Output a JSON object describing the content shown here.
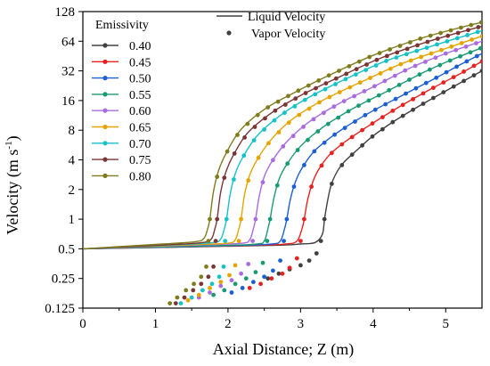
{
  "chart_data": {
    "type": "scatter",
    "title": "",
    "xlabel": "Axial Distance; Z (m)",
    "ylabel": "Velocity (m s⁻¹)",
    "ylabel_main": "Velocity (m s",
    "ylabel_sup": "-1",
    "ylabel_close": ")",
    "xlim": [
      0,
      5.5
    ],
    "ylim": [
      0.125,
      128
    ],
    "yscale": "log2",
    "x_ticks": [
      0,
      1,
      2,
      3,
      4,
      5
    ],
    "x_tick_labels": [
      "0",
      "1",
      "2",
      "3",
      "4",
      "5"
    ],
    "y_ticks": [
      0.125,
      0.25,
      0.5,
      1,
      2,
      4,
      8,
      16,
      32,
      64,
      128
    ],
    "y_tick_labels": [
      "0.125",
      "0.25",
      "0.5",
      "1",
      "2",
      "4",
      "8",
      "16",
      "32",
      "64",
      "128"
    ],
    "legend": {
      "title": "Emissivity",
      "placement": "top-left",
      "line_entry": "Liquid Velocity",
      "dot_entry": "Vapor Velocity"
    },
    "grid": false,
    "series": [
      {
        "name": "0.40",
        "color": "#404040",
        "x_trans": 3.33,
        "x_end": 5.5,
        "y_end": 32,
        "liquid": [
          [
            0,
            0.5
          ],
          [
            2.5,
            0.54
          ],
          [
            3.0,
            0.56
          ],
          [
            3.2,
            0.58
          ],
          [
            3.3,
            0.7
          ],
          [
            3.33,
            1.0
          ],
          [
            3.37,
            1.5
          ],
          [
            3.42,
            2.2
          ],
          [
            3.5,
            3.0
          ],
          [
            3.6,
            3.8
          ],
          [
            3.8,
            5.2
          ],
          [
            4.0,
            7.0
          ],
          [
            4.3,
            10
          ],
          [
            4.7,
            15
          ],
          [
            5.1,
            22
          ],
          [
            5.5,
            32
          ]
        ],
        "vapor": [
          [
            2.55,
            0.25
          ],
          [
            2.7,
            0.28
          ],
          [
            2.85,
            0.31
          ],
          [
            3.0,
            0.34
          ],
          [
            3.12,
            0.38
          ],
          [
            3.22,
            0.45
          ],
          [
            3.28,
            0.6
          ],
          [
            3.33,
            1.0
          ],
          [
            3.42,
            2.2
          ],
          [
            3.6,
            3.8
          ],
          [
            3.8,
            5.2
          ],
          [
            4.0,
            7.0
          ],
          [
            4.3,
            10
          ],
          [
            4.7,
            15
          ],
          [
            5.1,
            22
          ],
          [
            5.5,
            32
          ]
        ]
      },
      {
        "name": "0.45",
        "color": "#e8211f",
        "x_trans": 3.05,
        "x_end": 5.5,
        "y_end": 40,
        "liquid": [
          [
            0,
            0.5
          ],
          [
            2.3,
            0.54
          ],
          [
            2.8,
            0.56
          ],
          [
            2.95,
            0.6
          ],
          [
            3.02,
            0.8
          ],
          [
            3.05,
            1.0
          ],
          [
            3.1,
            1.6
          ],
          [
            3.17,
            2.4
          ],
          [
            3.25,
            3.2
          ],
          [
            3.4,
            4.5
          ],
          [
            3.6,
            6
          ],
          [
            3.9,
            8.5
          ],
          [
            4.3,
            13
          ],
          [
            4.8,
            21
          ],
          [
            5.2,
            30
          ],
          [
            5.5,
            40
          ]
        ],
        "vapor": [
          [
            2.3,
            0.2
          ],
          [
            2.45,
            0.22
          ],
          [
            2.6,
            0.25
          ],
          [
            2.75,
            0.28
          ],
          [
            2.85,
            0.32
          ],
          [
            2.95,
            0.4
          ],
          [
            3.0,
            0.6
          ],
          [
            3.05,
            1.0
          ],
          [
            3.17,
            2.4
          ],
          [
            3.4,
            4.5
          ],
          [
            3.6,
            6
          ],
          [
            3.9,
            8.5
          ],
          [
            4.3,
            13
          ],
          [
            4.8,
            21
          ],
          [
            5.2,
            30
          ],
          [
            5.5,
            40
          ]
        ]
      },
      {
        "name": "0.50",
        "color": "#1a5fd4",
        "x_trans": 2.81,
        "x_end": 5.5,
        "y_end": 48,
        "liquid": [
          [
            0,
            0.5
          ],
          [
            2.1,
            0.54
          ],
          [
            2.6,
            0.56
          ],
          [
            2.72,
            0.6
          ],
          [
            2.78,
            0.8
          ],
          [
            2.81,
            1.0
          ],
          [
            2.86,
            1.6
          ],
          [
            2.93,
            2.4
          ],
          [
            3.02,
            3.3
          ],
          [
            3.2,
            5
          ],
          [
            3.5,
            7.5
          ],
          [
            3.9,
            11.5
          ],
          [
            4.4,
            18
          ],
          [
            4.9,
            28
          ],
          [
            5.2,
            37
          ],
          [
            5.5,
            48
          ]
        ],
        "vapor": [
          [
            2.05,
            0.18
          ],
          [
            2.2,
            0.2
          ],
          [
            2.35,
            0.23
          ],
          [
            2.5,
            0.26
          ],
          [
            2.62,
            0.3
          ],
          [
            2.72,
            0.38
          ],
          [
            2.77,
            0.6
          ],
          [
            2.81,
            1.0
          ],
          [
            2.93,
            2.4
          ],
          [
            3.2,
            5
          ],
          [
            3.5,
            7.5
          ],
          [
            3.9,
            11.5
          ],
          [
            4.4,
            18
          ],
          [
            4.9,
            28
          ],
          [
            5.2,
            37
          ],
          [
            5.5,
            48
          ]
        ]
      },
      {
        "name": "0.55",
        "color": "#1a9a73",
        "x_trans": 2.58,
        "x_end": 5.5,
        "y_end": 55,
        "liquid": [
          [
            0,
            0.5
          ],
          [
            1.9,
            0.54
          ],
          [
            2.4,
            0.56
          ],
          [
            2.5,
            0.6
          ],
          [
            2.55,
            0.8
          ],
          [
            2.58,
            1.0
          ],
          [
            2.63,
            1.6
          ],
          [
            2.7,
            2.5
          ],
          [
            2.8,
            3.5
          ],
          [
            3.0,
            5.5
          ],
          [
            3.3,
            8.5
          ],
          [
            3.7,
            13
          ],
          [
            4.2,
            20
          ],
          [
            4.7,
            31
          ],
          [
            5.1,
            42
          ],
          [
            5.5,
            55
          ]
        ],
        "vapor": [
          [
            1.8,
            0.17
          ],
          [
            1.95,
            0.19
          ],
          [
            2.1,
            0.22
          ],
          [
            2.25,
            0.25
          ],
          [
            2.38,
            0.29
          ],
          [
            2.48,
            0.36
          ],
          [
            2.54,
            0.6
          ],
          [
            2.58,
            1.0
          ],
          [
            2.7,
            2.5
          ],
          [
            3.0,
            5.5
          ],
          [
            3.3,
            8.5
          ],
          [
            3.7,
            13
          ],
          [
            4.2,
            20
          ],
          [
            4.7,
            31
          ],
          [
            5.1,
            42
          ],
          [
            5.5,
            55
          ]
        ]
      },
      {
        "name": "0.60",
        "color": "#a86be0",
        "x_trans": 2.38,
        "x_end": 5.5,
        "y_end": 64,
        "liquid": [
          [
            0,
            0.5
          ],
          [
            1.7,
            0.55
          ],
          [
            2.2,
            0.57
          ],
          [
            2.3,
            0.62
          ],
          [
            2.35,
            0.8
          ],
          [
            2.38,
            1.0
          ],
          [
            2.43,
            1.7
          ],
          [
            2.5,
            2.7
          ],
          [
            2.6,
            3.8
          ],
          [
            2.8,
            6
          ],
          [
            3.1,
            9.5
          ],
          [
            3.5,
            14.5
          ],
          [
            4.0,
            22
          ],
          [
            4.5,
            34
          ],
          [
            5.0,
            48
          ],
          [
            5.5,
            64
          ]
        ],
        "vapor": [
          [
            1.6,
            0.16
          ],
          [
            1.75,
            0.18
          ],
          [
            1.9,
            0.21
          ],
          [
            2.05,
            0.24
          ],
          [
            2.18,
            0.28
          ],
          [
            2.28,
            0.35
          ],
          [
            2.34,
            0.6
          ],
          [
            2.38,
            1.0
          ],
          [
            2.5,
            2.7
          ],
          [
            2.8,
            6
          ],
          [
            3.1,
            9.5
          ],
          [
            3.5,
            14.5
          ],
          [
            4.0,
            22
          ],
          [
            4.5,
            34
          ],
          [
            5.0,
            48
          ],
          [
            5.5,
            64
          ]
        ]
      },
      {
        "name": "0.65",
        "color": "#e5a400",
        "x_trans": 2.18,
        "x_end": 5.5,
        "y_end": 72,
        "liquid": [
          [
            0,
            0.5
          ],
          [
            1.5,
            0.55
          ],
          [
            2.0,
            0.57
          ],
          [
            2.1,
            0.62
          ],
          [
            2.15,
            0.8
          ],
          [
            2.18,
            1.0
          ],
          [
            2.23,
            1.8
          ],
          [
            2.3,
            2.8
          ],
          [
            2.4,
            4
          ],
          [
            2.6,
            6.5
          ],
          [
            2.9,
            10.5
          ],
          [
            3.3,
            16
          ],
          [
            3.8,
            24
          ],
          [
            4.4,
            38
          ],
          [
            5.0,
            54
          ],
          [
            5.5,
            72
          ]
        ],
        "vapor": [
          [
            1.45,
            0.15
          ],
          [
            1.6,
            0.17
          ],
          [
            1.75,
            0.2
          ],
          [
            1.9,
            0.23
          ],
          [
            2.02,
            0.27
          ],
          [
            2.1,
            0.34
          ],
          [
            2.15,
            0.6
          ],
          [
            2.18,
            1.0
          ],
          [
            2.3,
            2.8
          ],
          [
            2.6,
            6.5
          ],
          [
            2.9,
            10.5
          ],
          [
            3.3,
            16
          ],
          [
            3.8,
            24
          ],
          [
            4.4,
            38
          ],
          [
            5.0,
            54
          ],
          [
            5.5,
            72
          ]
        ]
      },
      {
        "name": "0.70",
        "color": "#16c1c8",
        "x_trans": 1.98,
        "x_end": 5.5,
        "y_end": 82,
        "liquid": [
          [
            0,
            0.5
          ],
          [
            1.3,
            0.55
          ],
          [
            1.8,
            0.58
          ],
          [
            1.9,
            0.63
          ],
          [
            1.95,
            0.8
          ],
          [
            1.98,
            1.0
          ],
          [
            2.03,
            1.8
          ],
          [
            2.1,
            2.9
          ],
          [
            2.2,
            4.2
          ],
          [
            2.4,
            7
          ],
          [
            2.7,
            11
          ],
          [
            3.1,
            17
          ],
          [
            3.6,
            26
          ],
          [
            4.2,
            41
          ],
          [
            4.9,
            60
          ],
          [
            5.5,
            82
          ]
        ],
        "vapor": [
          [
            1.35,
            0.14
          ],
          [
            1.5,
            0.16
          ],
          [
            1.65,
            0.19
          ],
          [
            1.78,
            0.22
          ],
          [
            1.88,
            0.26
          ],
          [
            1.94,
            0.33
          ],
          [
            1.96,
            0.6
          ],
          [
            1.98,
            1.0
          ],
          [
            2.1,
            2.9
          ],
          [
            2.4,
            7
          ],
          [
            2.7,
            11
          ],
          [
            3.1,
            17
          ],
          [
            3.6,
            26
          ],
          [
            4.2,
            41
          ],
          [
            4.9,
            60
          ],
          [
            5.5,
            82
          ]
        ]
      },
      {
        "name": "0.75",
        "color": "#7a3535",
        "x_trans": 1.85,
        "x_end": 5.5,
        "y_end": 91,
        "liquid": [
          [
            0,
            0.5
          ],
          [
            1.2,
            0.55
          ],
          [
            1.65,
            0.58
          ],
          [
            1.77,
            0.63
          ],
          [
            1.82,
            0.8
          ],
          [
            1.85,
            1.0
          ],
          [
            1.9,
            1.9
          ],
          [
            1.97,
            3.0
          ],
          [
            2.07,
            4.4
          ],
          [
            2.27,
            7.5
          ],
          [
            2.6,
            12
          ],
          [
            3.0,
            18
          ],
          [
            3.5,
            27
          ],
          [
            4.1,
            43
          ],
          [
            4.8,
            65
          ],
          [
            5.5,
            91
          ]
        ],
        "vapor": [
          [
            1.28,
            0.14
          ],
          [
            1.4,
            0.16
          ],
          [
            1.52,
            0.19
          ],
          [
            1.63,
            0.22
          ],
          [
            1.73,
            0.26
          ],
          [
            1.8,
            0.33
          ],
          [
            1.83,
            0.6
          ],
          [
            1.85,
            1.0
          ],
          [
            1.97,
            3.0
          ],
          [
            2.27,
            7.5
          ],
          [
            2.6,
            12
          ],
          [
            3.0,
            18
          ],
          [
            3.5,
            27
          ],
          [
            4.1,
            43
          ],
          [
            4.8,
            65
          ],
          [
            5.5,
            91
          ]
        ]
      },
      {
        "name": "0.80",
        "color": "#7e7c1c",
        "x_trans": 1.75,
        "x_end": 5.5,
        "y_end": 100,
        "liquid": [
          [
            0,
            0.5
          ],
          [
            1.1,
            0.56
          ],
          [
            1.55,
            0.59
          ],
          [
            1.67,
            0.64
          ],
          [
            1.72,
            0.8
          ],
          [
            1.75,
            1.0
          ],
          [
            1.8,
            1.9
          ],
          [
            1.87,
            3.1
          ],
          [
            1.97,
            4.6
          ],
          [
            2.17,
            8
          ],
          [
            2.5,
            13
          ],
          [
            2.9,
            19
          ],
          [
            3.4,
            29
          ],
          [
            4.0,
            46
          ],
          [
            4.7,
            70
          ],
          [
            5.5,
            100
          ]
        ],
        "vapor": [
          [
            1.2,
            0.14
          ],
          [
            1.3,
            0.16
          ],
          [
            1.42,
            0.19
          ],
          [
            1.53,
            0.22
          ],
          [
            1.63,
            0.26
          ],
          [
            1.7,
            0.33
          ],
          [
            1.73,
            0.6
          ],
          [
            1.75,
            1.0
          ],
          [
            1.87,
            3.1
          ],
          [
            2.17,
            8
          ],
          [
            2.5,
            13
          ],
          [
            2.9,
            19
          ],
          [
            3.4,
            29
          ],
          [
            4.0,
            46
          ],
          [
            4.7,
            70
          ],
          [
            5.5,
            100
          ]
        ]
      }
    ]
  }
}
